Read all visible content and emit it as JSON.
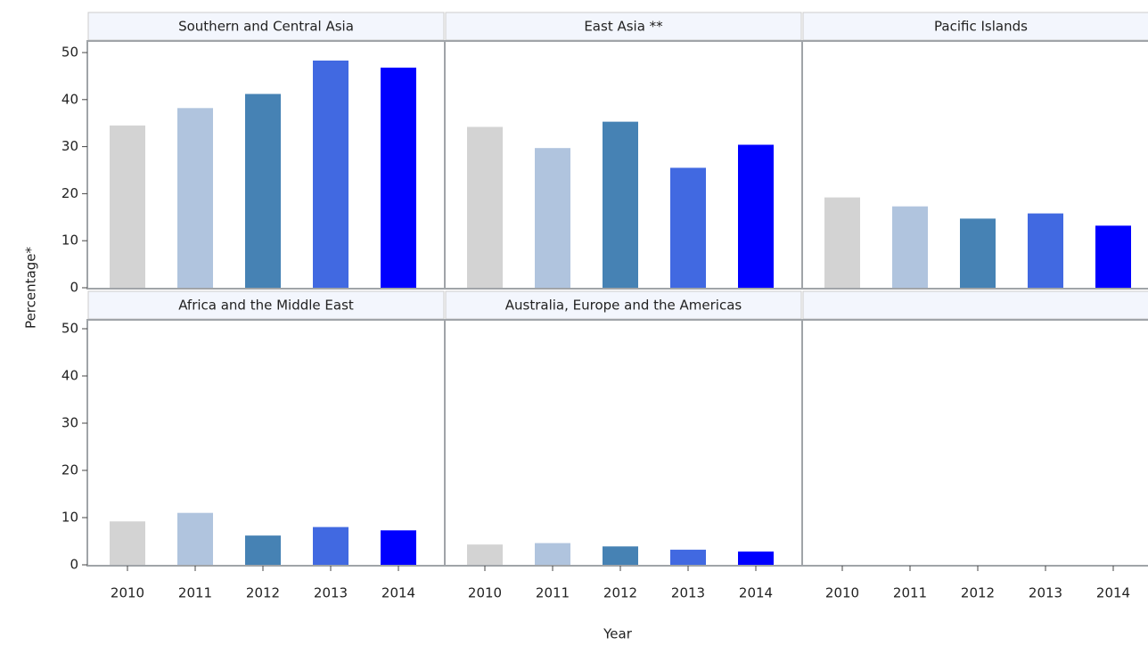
{
  "chart_data": {
    "type": "bar",
    "x_label": "Year",
    "y_label": "Percentage*",
    "categories": [
      "2010",
      "2011",
      "2012",
      "2013",
      "2014"
    ],
    "colors": [
      "#d3d3d3",
      "#b0c4de",
      "#4682b4",
      "#4169e1",
      "#0000ff"
    ],
    "ylim": [
      0,
      50
    ],
    "yticks": [
      0,
      10,
      20,
      30,
      40,
      50
    ],
    "panels": [
      {
        "title": "Southern and Central Asia",
        "values": [
          34.5,
          38.2,
          41.2,
          48.3,
          46.8
        ]
      },
      {
        "title": "East Asia **",
        "values": [
          34.2,
          29.7,
          35.3,
          25.5,
          30.4
        ]
      },
      {
        "title": "Pacific Islands",
        "values": [
          19.2,
          17.3,
          14.7,
          15.8,
          13.2
        ]
      },
      {
        "title": "Africa and the Middle East",
        "values": [
          9.2,
          11.0,
          6.2,
          8.0,
          7.3
        ]
      },
      {
        "title": "Australia, Europe and the Americas",
        "values": [
          4.3,
          4.6,
          3.9,
          3.2,
          2.8
        ]
      }
    ]
  }
}
